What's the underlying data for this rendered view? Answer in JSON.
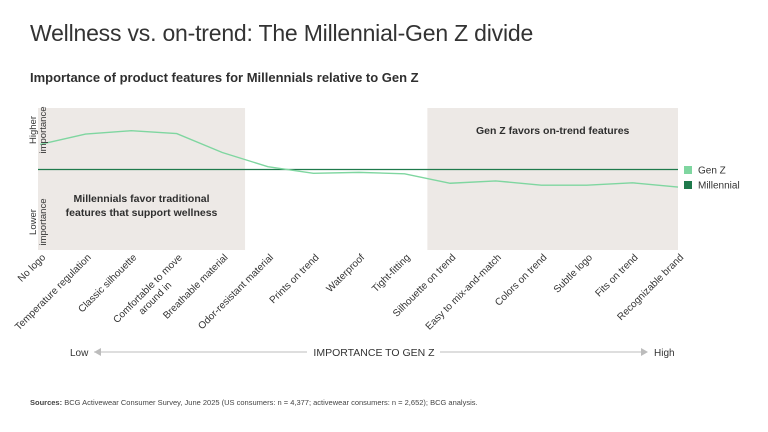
{
  "title": "Wellness vs. on-trend: The Millennial-Gen Z divide",
  "subtitle": "Importance of product features for Millennials relative to Gen Z",
  "sources_label": "Sources:",
  "sources_text": "BCG Activewear Consumer Survey, June 2025 (US consumers: n = 4,377; activewear consumers: n = 2,652); BCG analysis.",
  "chart_data": {
    "type": "line",
    "categories": [
      "No logo",
      "Temperature regulation",
      "Classic silhouette",
      "Comfortable to move around in",
      "Breathable material",
      "Odor-resistant material",
      "Prints on trend",
      "Waterproof",
      "Tight-fitting",
      "Silhouette on trend",
      "Easy to mix-and-match",
      "Colors on trend",
      "Subtle logo",
      "Fits on trend",
      "Recognizable brand"
    ],
    "series": [
      {
        "name": "Gen Z",
        "color": "#7fd6a0",
        "values": [
          0.53,
          0.75,
          0.82,
          0.76,
          0.36,
          0.06,
          -0.08,
          -0.06,
          -0.09,
          -0.29,
          -0.24,
          -0.33,
          -0.33,
          -0.28,
          -0.37
        ]
      },
      {
        "name": "Millennial",
        "color": "#1f7a4c",
        "values": [
          0,
          0,
          0,
          0,
          0,
          0,
          0,
          0,
          0,
          0,
          0,
          0,
          0,
          0,
          0
        ]
      }
    ],
    "ylim": [
      -1.7,
      1.3
    ],
    "ylabel_top": "Higher importance",
    "ylabel_bottom": "Lower importance",
    "xaxis_low": "Low",
    "xaxis_title": "IMPORTANCE TO GEN Z",
    "xaxis_high": "High",
    "regions": [
      {
        "label": "Millennials favor traditional features that support wellness",
        "from": 0,
        "to": 4
      },
      {
        "label": "Gen Z favors on-trend features",
        "from": 9,
        "to": 14
      }
    ],
    "legend_position": "right",
    "grid": false
  }
}
